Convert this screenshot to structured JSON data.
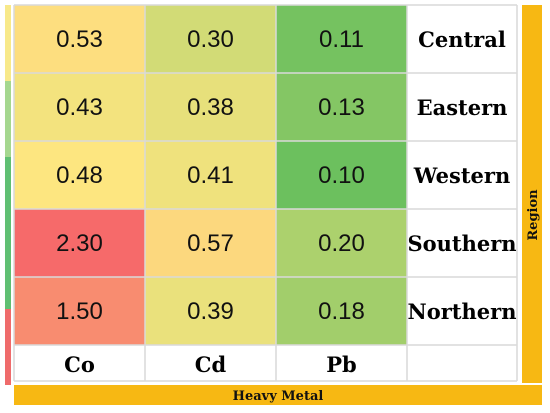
{
  "chart_data": {
    "type": "heatmap",
    "xlabel": "Heavy Metal",
    "ylabel": "Region",
    "columns": [
      "Co",
      "Cd",
      "Pb"
    ],
    "rows": [
      "Central",
      "Eastern",
      "Western",
      "Southern",
      "Northern"
    ],
    "values": [
      [
        "0.53",
        "0.30",
        "0.11"
      ],
      [
        "0.43",
        "0.38",
        "0.13"
      ],
      [
        "0.48",
        "0.41",
        "0.10"
      ],
      [
        "2.30",
        "0.57",
        "0.20"
      ],
      [
        "1.50",
        "0.39",
        "0.18"
      ]
    ],
    "colormap": {
      "low": "#6cc05e",
      "mid": "#fde680",
      "high": "#f66a6a"
    },
    "axis_bar_color": "#f7b813",
    "side_strip_colors": [
      "#f8e98a",
      "#a5d78f",
      "#5fbf72",
      "#5fbf72",
      "#ef6b6b"
    ]
  }
}
